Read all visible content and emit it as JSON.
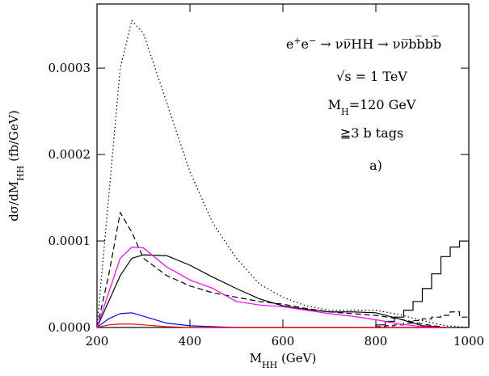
{
  "chart_data": {
    "type": "line",
    "annotations": [
      [
        "e",
        "+",
        "e",
        "−",
        " → νν̅HH → νν̅bb̅bb̅"
      ],
      [
        "√s = 1 TeV"
      ],
      [
        "M",
        "H",
        "=120 GeV"
      ],
      [
        "≧3 b tags"
      ],
      [
        "a)"
      ]
    ],
    "x_label": [
      "M",
      "HH",
      " (GeV)"
    ],
    "y_label": [
      "dσ/dM",
      "HH",
      " (fb/GeV)"
    ],
    "xlim": [
      200,
      1000
    ],
    "ylim": [
      0,
      0.000374
    ],
    "xticks": [
      200,
      400,
      600,
      800,
      1000
    ],
    "yticks": [
      {
        "value": 0,
        "label": "0.0000"
      },
      {
        "value": 0.0001,
        "label": "0.0001"
      },
      {
        "value": 0.0002,
        "label": "0.0002"
      },
      {
        "value": 0.0003,
        "label": "0.0003"
      }
    ],
    "x": [
      200,
      225,
      250,
      275,
      300,
      350,
      400,
      450,
      500,
      550,
      600,
      650,
      700,
      750,
      800,
      850,
      900,
      950,
      1000
    ],
    "series": [
      {
        "color": "#000000",
        "dash": "dotted",
        "values": [
          0,
          0.00015,
          0.0003,
          0.000355,
          0.00034,
          0.00026,
          0.00018,
          0.00012,
          8e-05,
          5e-05,
          3.5e-05,
          2.5e-05,
          2e-05,
          2e-05,
          2e-05,
          1.5e-05,
          8e-06,
          2e-06,
          0
        ]
      },
      {
        "color": "#000000",
        "dash": "dashed",
        "values": [
          0,
          6e-05,
          0.000133,
          0.00011,
          8e-05,
          6e-05,
          4.8e-05,
          4e-05,
          3.5e-05,
          3e-05,
          2.7e-05,
          2.2e-05,
          1.8e-05,
          1.6e-05,
          1.4e-05,
          1e-05,
          4e-06,
          0,
          null
        ]
      },
      {
        "color": "#000000",
        "dash": "solid",
        "values": [
          0,
          3e-05,
          6e-05,
          8e-05,
          8.4e-05,
          8.3e-05,
          7.2e-05,
          5.8e-05,
          4.5e-05,
          3.3e-05,
          2.5e-05,
          2.1e-05,
          1.8e-05,
          1.8e-05,
          1.7e-05,
          1e-05,
          2e-06,
          0,
          null
        ]
      },
      {
        "color": "#ff00ff",
        "dash": "solid",
        "values": [
          0,
          4e-05,
          8e-05,
          9.3e-05,
          9.2e-05,
          7e-05,
          5.5e-05,
          4.5e-05,
          3e-05,
          2.6e-05,
          2.4e-05,
          2e-05,
          1.6e-05,
          1.3e-05,
          9e-06,
          4e-06,
          1e-06,
          0,
          null
        ]
      },
      {
        "color": "#0000ff",
        "dash": "solid",
        "values": [
          0,
          1e-05,
          1.6e-05,
          1.7e-05,
          1.3e-05,
          5e-06,
          2e-06,
          1e-06,
          0,
          0,
          0,
          0,
          0,
          0,
          0,
          0,
          0,
          0,
          null
        ]
      },
      {
        "color": "#ff0000",
        "dash": "solid",
        "values": [
          0,
          3e-06,
          4e-06,
          4e-06,
          3e-06,
          1e-06,
          0,
          0,
          0,
          0,
          0,
          0,
          0,
          0,
          0,
          0,
          0,
          0,
          null
        ]
      }
    ],
    "histograms": [
      {
        "color": "#000000",
        "dash": "solid",
        "bins": [
          800,
          820,
          840,
          860,
          880,
          900,
          920,
          940,
          960,
          980,
          1000
        ],
        "counts": [
          3e-06,
          7e-06,
          1.2e-05,
          2e-05,
          3e-05,
          4.5e-05,
          6.2e-05,
          8.2e-05,
          9.3e-05,
          0.0001
        ]
      },
      {
        "color": "#000000",
        "dash": "dashed",
        "bins": [
          800,
          820,
          840,
          860,
          880,
          900,
          920,
          940,
          960,
          980,
          1000
        ],
        "counts": [
          1e-06,
          2e-06,
          3e-06,
          5e-06,
          8e-06,
          1e-05,
          1.2e-05,
          1.4e-05,
          1.8e-05,
          1.2e-05
        ]
      }
    ]
  }
}
